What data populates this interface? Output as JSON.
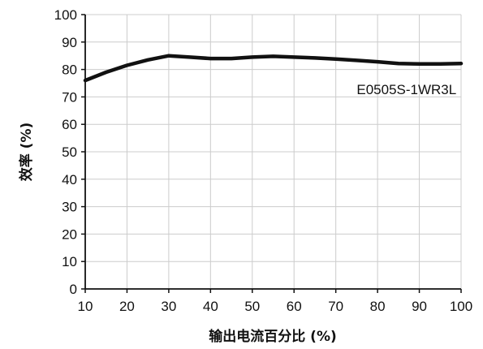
{
  "chart_data": {
    "type": "line",
    "xlabel": "输出电流百分比 (%)",
    "ylabel": "效率 (%)",
    "xlim": [
      10,
      100
    ],
    "ylim": [
      0,
      100
    ],
    "xticks": [
      "10",
      "20",
      "30",
      "40",
      "50",
      "60",
      "70",
      "80",
      "90",
      "100"
    ],
    "yticks": [
      "0",
      "10",
      "20",
      "30",
      "40",
      "50",
      "60",
      "70",
      "80",
      "90",
      "100"
    ],
    "grid": true,
    "series": [
      {
        "name": "E0505S-1WR3L",
        "x": [
          10,
          15,
          20,
          25,
          30,
          35,
          40,
          45,
          50,
          55,
          60,
          65,
          70,
          75,
          80,
          85,
          90,
          95,
          100
        ],
        "y": [
          76,
          79,
          81.5,
          83.5,
          85,
          84.5,
          84,
          84,
          84.5,
          84.8,
          84.5,
          84.2,
          83.8,
          83.3,
          82.8,
          82.2,
          82,
          82,
          82.2
        ]
      }
    ],
    "annotations": [
      {
        "text": "E0505S-1WR3L",
        "x": 75,
        "y": 71
      }
    ],
    "colors": {
      "line": "#111111",
      "grid": "#cccccc",
      "axis": "#111111"
    }
  }
}
